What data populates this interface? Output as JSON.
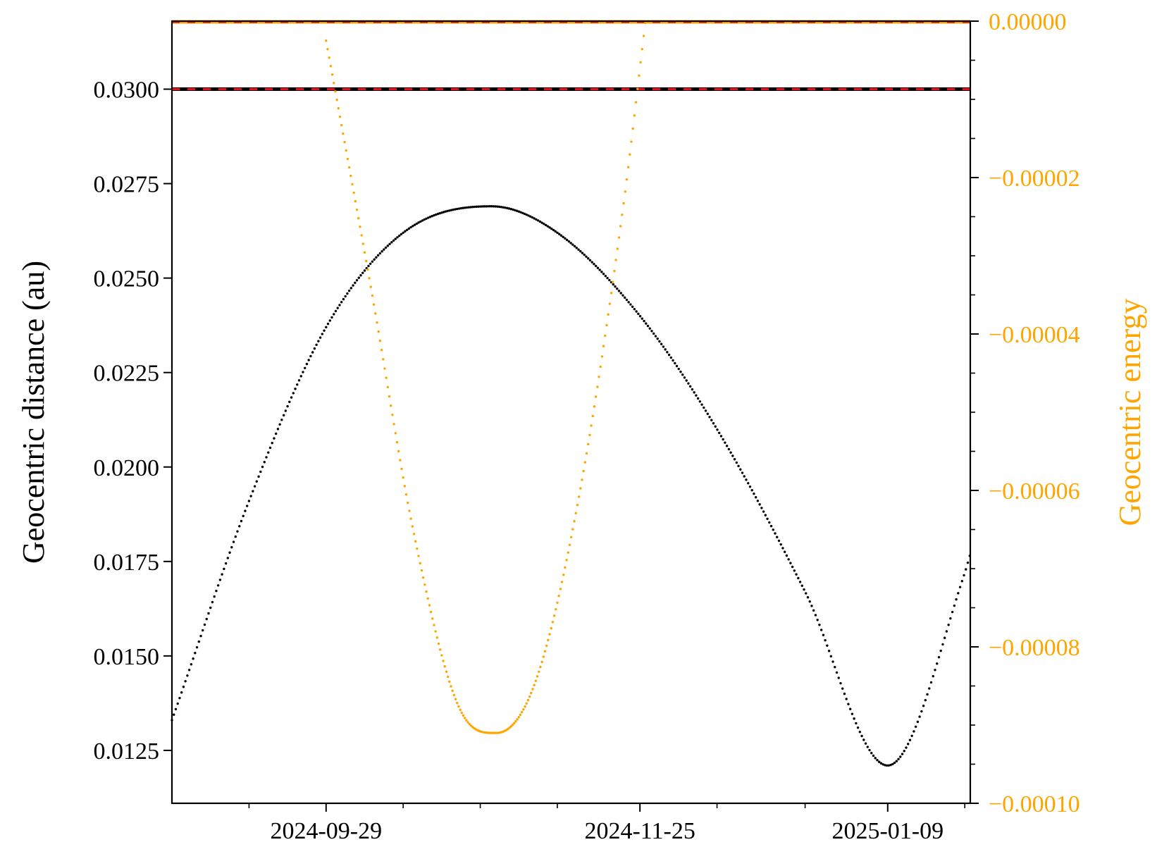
{
  "colors": {
    "left_axis": "#000000",
    "right_axis": "#FFA500",
    "hill_line": "#000000",
    "dash": "#E8101E",
    "zero_line": "#FFA500",
    "background": "#ffffff"
  },
  "chart_data": {
    "type": "scatter",
    "x_axis": {
      "type": "date",
      "range": [
        "2024-09-01",
        "2025-01-24"
      ],
      "tick_labels": [
        "2024-09-29",
        "2024-11-25",
        "2025-01-09"
      ],
      "minor_ticks": [
        "2024-09-15",
        "2024-10-13",
        "2024-10-27",
        "2024-11-10",
        "2024-12-09",
        "2024-12-25",
        "2025-01-23"
      ],
      "label": ""
    },
    "y_axis_left": {
      "label": "Geocentric distance (au)",
      "range": [
        0.0111,
        0.0318
      ],
      "ticks": [
        0.0125,
        0.015,
        0.0175,
        0.02,
        0.0225,
        0.025,
        0.0275,
        0.03
      ],
      "tick_labels": [
        "0.0125",
        "0.0150",
        "0.0175",
        "0.0200",
        "0.0225",
        "0.0250",
        "0.0275",
        "0.0300"
      ]
    },
    "y_axis_right": {
      "label": "Geocentric energy",
      "range": [
        -0.0001,
        0.0
      ],
      "ticks": [
        -0.0001,
        -8e-05,
        -6e-05,
        -4e-05,
        -2e-05,
        0.0
      ],
      "tick_labels": [
        "−0.00010",
        "−0.00008",
        "−0.00006",
        "−0.00004",
        "−0.00002",
        "0.00000"
      ]
    },
    "reference_lines": [
      {
        "axis": "left",
        "y": 0.03,
        "style": "black solid with red dashed overlay"
      },
      {
        "axis": "right",
        "y": 0.0,
        "style": "orange solid with red dashed overlay"
      }
    ],
    "series": [
      {
        "axis": "left",
        "color": "black",
        "marker": "dot",
        "x": [
          "2024-09-01",
          "2024-09-15",
          "2024-09-29",
          "2024-10-13",
          "2024-10-29",
          "2024-11-10",
          "2024-11-25",
          "2024-12-09",
          "2024-12-25",
          "2025-01-09",
          "2025-01-23",
          "2025-01-24"
        ],
        "y": [
          0.0133,
          0.0191,
          0.0237,
          0.0262,
          0.0269,
          0.0262,
          0.024,
          0.021,
          0.0167,
          0.0121,
          0.0172,
          0.0177
        ]
      },
      {
        "axis": "right",
        "color": "orange",
        "marker": "dot",
        "x": [
          "2024-09-29",
          "2024-10-07",
          "2024-10-15",
          "2024-10-23",
          "2024-10-30",
          "2024-11-06",
          "2024-11-14",
          "2024-11-22",
          "2024-11-26"
        ],
        "y": [
          -2.5e-06,
          -3.35e-05,
          -6.57e-05,
          -8.75e-05,
          -9.1e-05,
          -8.45e-05,
          -6.05e-05,
          -2.35e-05,
          0.0
        ]
      }
    ]
  }
}
